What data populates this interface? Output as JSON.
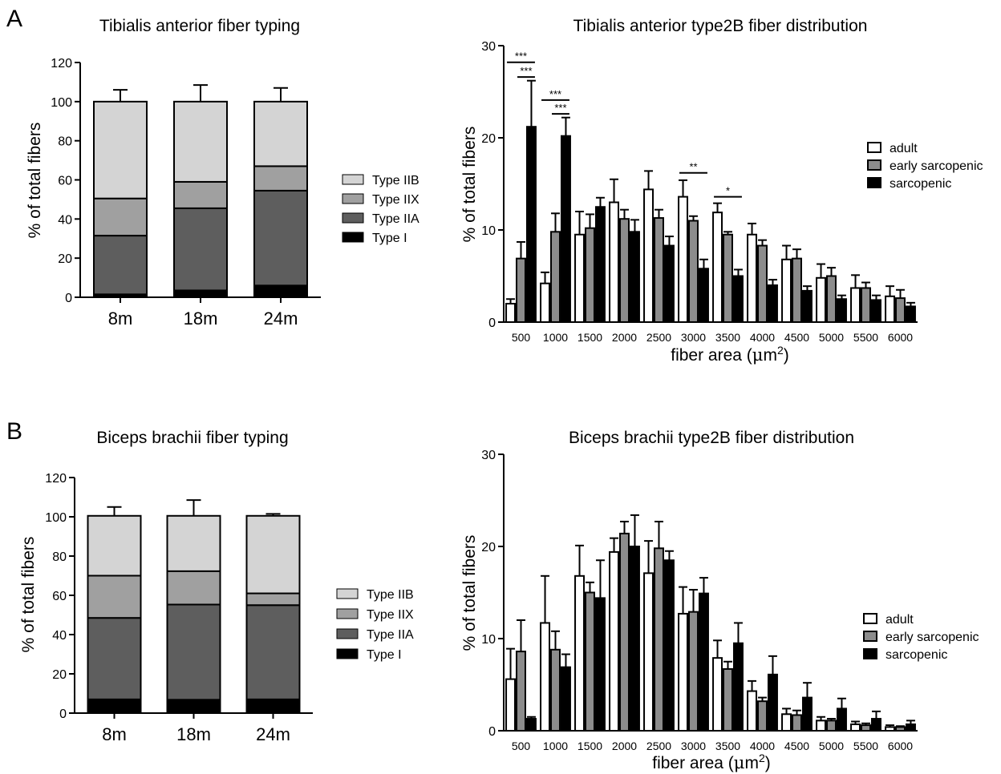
{
  "panels": [
    {
      "letter": "A"
    },
    {
      "letter": "B"
    }
  ],
  "chart_data": [
    {
      "type": "bar",
      "stacked": true,
      "title": "Tibialis anterior fiber typing",
      "ylabel": "% of total fibers",
      "xlabel": "",
      "ylim": [
        0,
        120
      ],
      "yticks": [
        0,
        20,
        40,
        60,
        80,
        100,
        120
      ],
      "categories": [
        "8m",
        "18m",
        "24m"
      ],
      "legend_position": "right",
      "series": [
        {
          "name": "Type I",
          "color": "#000000",
          "values": [
            1.5,
            3.5,
            6.0
          ],
          "errors": [
            0.5,
            0.8,
            2.5
          ]
        },
        {
          "name": "Type IIA",
          "color": "#5e5e5e",
          "values": [
            30.0,
            42.0,
            48.5
          ],
          "errors": [
            5.0,
            10.0,
            7.0
          ]
        },
        {
          "name": "Type IIX",
          "color": "#a0a0a0",
          "values": [
            19.0,
            13.5,
            12.5
          ],
          "errors": [
            11.0,
            7.0,
            3.0
          ]
        },
        {
          "name": "Type IIB",
          "color": "#d4d4d4",
          "values": [
            49.5,
            41.0,
            33.0
          ],
          "errors": [
            6.0,
            8.5,
            7.0
          ]
        }
      ]
    },
    {
      "type": "bar",
      "title": "Tibialis anterior type2B fiber distribution",
      "xlabel": "fiber area (μm²)",
      "ylabel": "% of total fibers",
      "ylim": [
        0,
        30
      ],
      "yticks": [
        0,
        10,
        20,
        30
      ],
      "categories": [
        "500",
        "1000",
        "1500",
        "2000",
        "2500",
        "3000",
        "3500",
        "4000",
        "4500",
        "5000",
        "5500",
        "6000"
      ],
      "legend_position": "right",
      "series": [
        {
          "name": "adult",
          "color": "#ffffff",
          "values": [
            2.0,
            4.2,
            9.5,
            13.0,
            14.4,
            13.6,
            11.9,
            9.5,
            6.8,
            4.8,
            3.7,
            2.8
          ],
          "errors": [
            0.5,
            1.2,
            2.5,
            2.5,
            2.0,
            1.8,
            1.0,
            1.2,
            1.5,
            1.5,
            1.4,
            1.1
          ]
        },
        {
          "name": "early sarcopenic",
          "color": "#8c8c8c",
          "values": [
            6.9,
            9.8,
            10.2,
            11.2,
            11.3,
            11.0,
            9.5,
            8.3,
            6.9,
            5.0,
            3.7,
            2.6
          ],
          "errors": [
            1.8,
            2.0,
            1.5,
            1.0,
            0.9,
            0.5,
            0.3,
            0.6,
            1.0,
            0.9,
            0.6,
            0.9
          ]
        },
        {
          "name": "sarcopenic",
          "color": "#000000",
          "values": [
            21.2,
            20.2,
            12.5,
            9.8,
            8.3,
            5.8,
            5.0,
            4.0,
            3.4,
            2.5,
            2.4,
            1.7
          ],
          "errors": [
            5.0,
            2.0,
            1.0,
            1.3,
            1.0,
            1.0,
            0.7,
            0.6,
            0.5,
            0.4,
            0.5,
            0.4
          ]
        }
      ],
      "annotations": [
        {
          "text": "***",
          "x_from": "500",
          "x_to": "500",
          "series_from": "adult",
          "series_to": "sarcopenic",
          "y": 28.2
        },
        {
          "text": "***",
          "x_from": "500",
          "x_to": "500",
          "series_from": "early sarcopenic",
          "series_to": "sarcopenic",
          "y": 26.6
        },
        {
          "text": "***",
          "x_from": "1000",
          "x_to": "1000",
          "series_from": "adult",
          "series_to": "sarcopenic",
          "y": 24.1
        },
        {
          "text": "***",
          "x_from": "1000",
          "x_to": "1000",
          "series_from": "early sarcopenic",
          "series_to": "sarcopenic",
          "y": 22.6
        },
        {
          "text": "**",
          "x_from": "3000",
          "x_to": "3000",
          "series_from": "adult",
          "series_to": "sarcopenic",
          "y": 16.2
        },
        {
          "text": "*",
          "x_from": "3500",
          "x_to": "3500",
          "series_from": "adult",
          "series_to": "sarcopenic",
          "y": 13.6
        }
      ]
    },
    {
      "type": "bar",
      "stacked": true,
      "title": "Biceps brachii fiber typing",
      "ylabel": "% of total fibers",
      "xlabel": "",
      "ylim": [
        0,
        120
      ],
      "yticks": [
        0,
        20,
        40,
        60,
        80,
        100,
        120
      ],
      "categories": [
        "8m",
        "18m",
        "24m"
      ],
      "legend_position": "right",
      "series": [
        {
          "name": "Type I",
          "color": "#000000",
          "values": [
            7.0,
            6.8,
            7.0
          ],
          "errors": [
            0.8,
            0.8,
            0.8
          ]
        },
        {
          "name": "Type IIA",
          "color": "#5e5e5e",
          "values": [
            41.5,
            48.5,
            48.0
          ],
          "errors": [
            1.0,
            4.5,
            2.5
          ]
        },
        {
          "name": "Type IIX",
          "color": "#a0a0a0",
          "values": [
            21.5,
            17.0,
            6.0
          ],
          "errors": [
            7.0,
            6.0,
            3.0
          ]
        },
        {
          "name": "Type IIB",
          "color": "#d4d4d4",
          "values": [
            30.5,
            28.2,
            39.5
          ],
          "errors": [
            4.5,
            8.0,
            1.0
          ]
        }
      ]
    },
    {
      "type": "bar",
      "title": "Biceps brachii type2B fiber distribution",
      "xlabel": "fiber area (μm²)",
      "ylabel": "% of total fibers",
      "ylim": [
        0,
        30
      ],
      "yticks": [
        0,
        10,
        20,
        30
      ],
      "categories": [
        "500",
        "1000",
        "1500",
        "2000",
        "2500",
        "3000",
        "3500",
        "4000",
        "4500",
        "5000",
        "5500",
        "6000"
      ],
      "legend_position": "right",
      "series": [
        {
          "name": "adult",
          "color": "#ffffff",
          "values": [
            5.6,
            11.7,
            16.8,
            19.4,
            17.1,
            12.7,
            7.9,
            4.3,
            1.8,
            1.1,
            0.7,
            0.4
          ],
          "errors": [
            3.3,
            5.1,
            3.3,
            1.5,
            3.5,
            2.9,
            1.9,
            1.1,
            0.6,
            0.4,
            0.3,
            0.2
          ]
        },
        {
          "name": "early sarcopenic",
          "color": "#8c8c8c",
          "values": [
            8.6,
            8.8,
            15.0,
            21.4,
            19.8,
            12.9,
            6.7,
            3.2,
            1.7,
            1.1,
            0.6,
            0.4
          ],
          "errors": [
            3.4,
            2.0,
            1.1,
            1.3,
            2.9,
            2.4,
            0.8,
            0.4,
            0.5,
            0.2,
            0.2,
            0.1
          ]
        },
        {
          "name": "sarcopenic",
          "color": "#000000",
          "values": [
            1.3,
            6.9,
            14.4,
            20.0,
            18.5,
            14.9,
            9.5,
            6.1,
            3.6,
            2.4,
            1.3,
            0.7
          ],
          "errors": [
            0.2,
            1.4,
            4.1,
            3.4,
            1.0,
            1.7,
            2.2,
            2.0,
            1.6,
            1.1,
            0.8,
            0.4
          ]
        }
      ]
    }
  ]
}
